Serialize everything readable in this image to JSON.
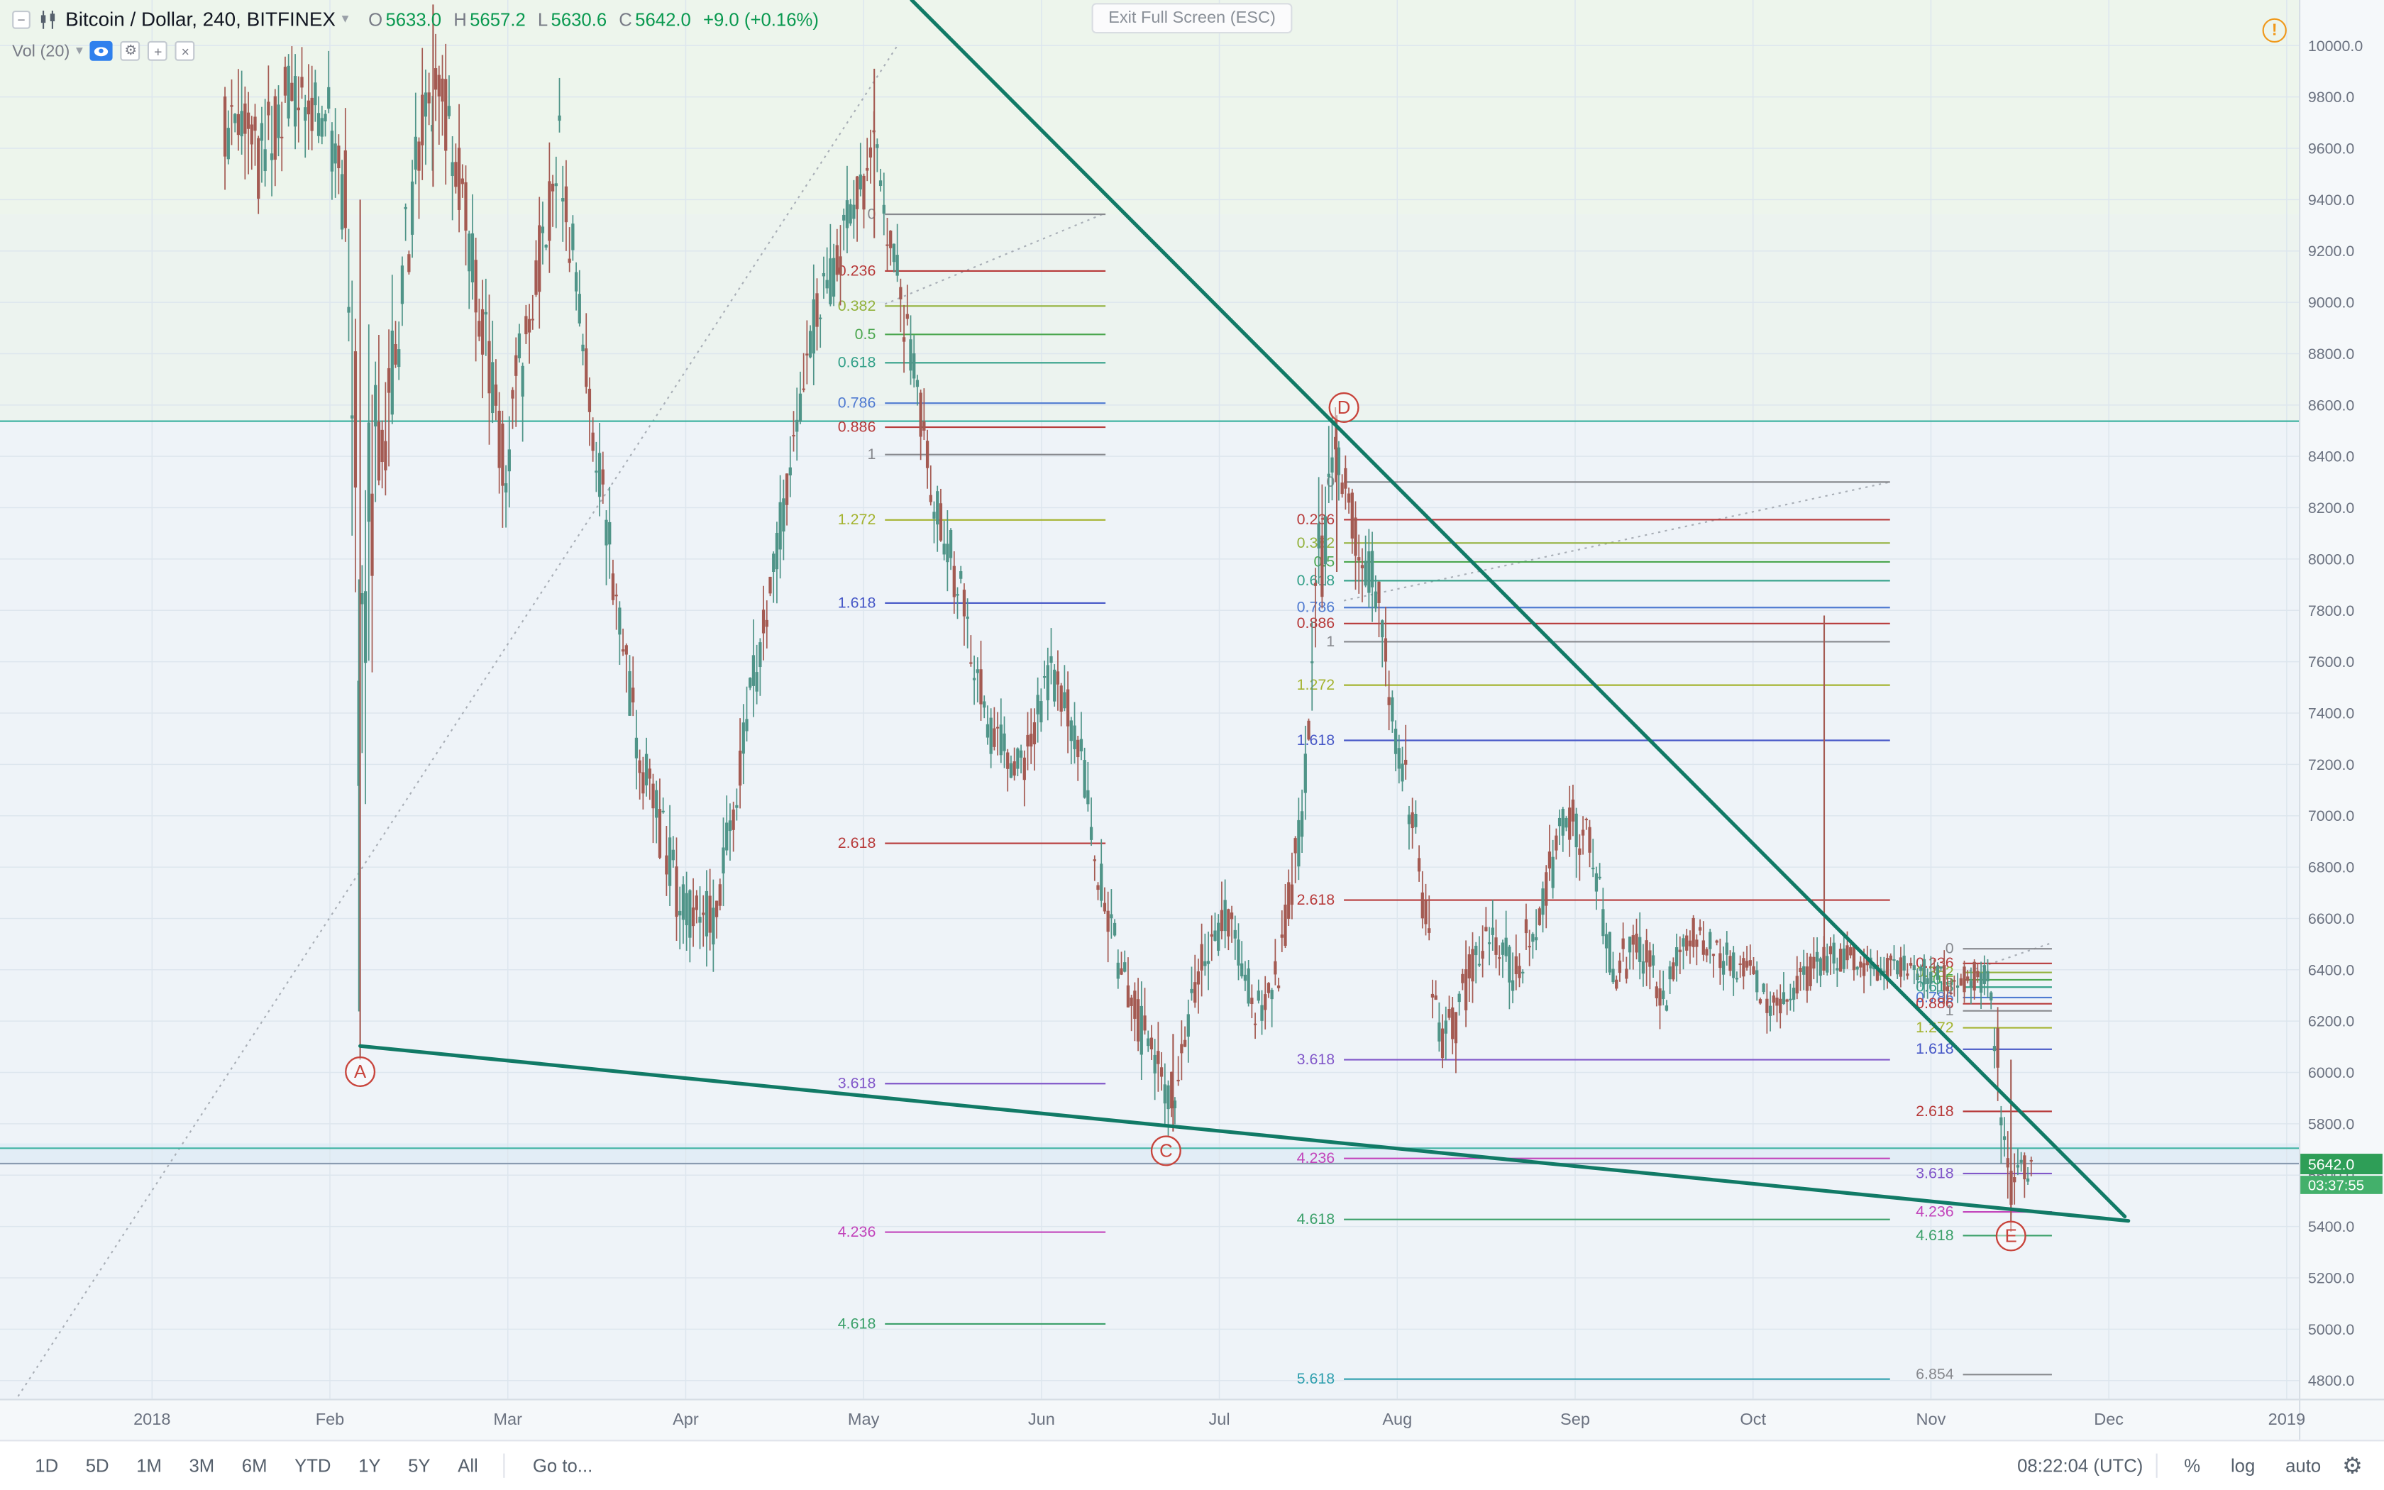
{
  "header": {
    "title": "Bitcoin / Dollar, 240, BITFINEX",
    "ohlc": {
      "o_label": "O",
      "o_value": "5633.0",
      "h_label": "H",
      "h_value": "5657.2",
      "l_label": "L",
      "l_value": "5630.6",
      "c_label": "C",
      "c_value": "5642.0",
      "change": "+9.0 (+0.16%)"
    },
    "indicator": {
      "name": "Vol (20)"
    }
  },
  "icons": {
    "minus": "−",
    "dropdown": "▾",
    "gear": "⚙",
    "plus": "+",
    "close": "×",
    "warning": "!",
    "gear_toolbar": "⚙"
  },
  "tooltip": {
    "text": "Exit Full Screen (ESC)"
  },
  "badges": {
    "last_price": "5642.0",
    "countdown": "03:37:55",
    "price_color": "#2e9e57",
    "countdown_color": "#43b06b"
  },
  "toolbar": {
    "ranges": [
      "1D",
      "5D",
      "1M",
      "3M",
      "6M",
      "YTD",
      "1Y",
      "5Y",
      "All"
    ],
    "goto": "Go to...",
    "clock": "08:22:04 (UTC)",
    "percent": "%",
    "log": "log",
    "auto": "auto"
  },
  "chart_data": {
    "type": "candlestick",
    "title": "Bitcoin / Dollar",
    "interval": "240",
    "exchange": "BITFINEX",
    "last_price": 5642.0,
    "y_axis": {
      "min": 4800,
      "max": 10000,
      "step": 200,
      "decimals": 1
    },
    "x_axis": {
      "ticks": [
        {
          "label": "2018",
          "t": 0
        },
        {
          "label": "Feb",
          "t": 1
        },
        {
          "label": "Mar",
          "t": 2
        },
        {
          "label": "Apr",
          "t": 3
        },
        {
          "label": "May",
          "t": 4
        },
        {
          "label": "Jun",
          "t": 5
        },
        {
          "label": "Jul",
          "t": 6
        },
        {
          "label": "Aug",
          "t": 7
        },
        {
          "label": "Sep",
          "t": 8
        },
        {
          "label": "Oct",
          "t": 9
        },
        {
          "label": "Nov",
          "t": 10
        },
        {
          "label": "Dec",
          "t": 11
        },
        {
          "label": "2019",
          "t": 12
        }
      ]
    },
    "price_path": [
      [
        0.41,
        9700,
        380
      ],
      [
        0.6,
        9550,
        420
      ],
      [
        0.75,
        9800,
        320
      ],
      [
        0.98,
        9760,
        320
      ],
      [
        1.1,
        9350,
        500
      ],
      [
        1.17,
        7600,
        2400
      ],
      [
        1.24,
        8300,
        800
      ],
      [
        1.38,
        8900,
        500
      ],
      [
        1.5,
        9650,
        400
      ],
      [
        1.62,
        9850,
        380
      ],
      [
        1.79,
        9250,
        380
      ],
      [
        1.97,
        8350,
        420
      ],
      [
        2.15,
        9050,
        380
      ],
      [
        2.29,
        9600,
        320
      ],
      [
        2.45,
        8700,
        320
      ],
      [
        2.6,
        7900,
        320
      ],
      [
        2.74,
        7250,
        280
      ],
      [
        2.97,
        6650,
        280
      ],
      [
        3.16,
        6600,
        250
      ],
      [
        3.35,
        7400,
        280
      ],
      [
        3.55,
        8200,
        280
      ],
      [
        3.72,
        8900,
        280
      ],
      [
        3.91,
        9300,
        270
      ],
      [
        4.06,
        9580,
        260
      ],
      [
        4.21,
        9000,
        280
      ],
      [
        4.38,
        8300,
        280
      ],
      [
        4.55,
        7850,
        250
      ],
      [
        4.72,
        7300,
        230
      ],
      [
        4.89,
        7200,
        220
      ],
      [
        5.06,
        7550,
        230
      ],
      [
        5.21,
        7300,
        220
      ],
      [
        5.34,
        6700,
        260
      ],
      [
        5.49,
        6300,
        240
      ],
      [
        5.62,
        6050,
        230
      ],
      [
        5.74,
        5900,
        220
      ],
      [
        5.9,
        6450,
        240
      ],
      [
        6.05,
        6600,
        220
      ],
      [
        6.2,
        6250,
        220
      ],
      [
        6.32,
        6350,
        220
      ],
      [
        6.45,
        6900,
        280
      ],
      [
        6.56,
        8000,
        550
      ],
      [
        6.67,
        8400,
        300
      ],
      [
        6.77,
        8100,
        280
      ],
      [
        6.88,
        7900,
        280
      ],
      [
        6.99,
        7300,
        280
      ],
      [
        7.11,
        6900,
        280
      ],
      [
        7.25,
        6050,
        280
      ],
      [
        7.37,
        6300,
        240
      ],
      [
        7.5,
        6550,
        220
      ],
      [
        7.65,
        6400,
        220
      ],
      [
        7.79,
        6600,
        220
      ],
      [
        7.95,
        7000,
        240
      ],
      [
        8.08,
        6900,
        240
      ],
      [
        8.21,
        6400,
        220
      ],
      [
        8.36,
        6500,
        200
      ],
      [
        8.5,
        6300,
        200
      ],
      [
        8.65,
        6550,
        200
      ],
      [
        8.8,
        6450,
        170
      ],
      [
        8.96,
        6420,
        160
      ],
      [
        9.1,
        6250,
        160
      ],
      [
        9.25,
        6350,
        160
      ],
      [
        9.4,
        6450,
        170
      ],
      [
        9.56,
        6450,
        140
      ],
      [
        9.7,
        6400,
        140
      ],
      [
        9.85,
        6420,
        130
      ],
      [
        10.0,
        6380,
        130
      ],
      [
        10.15,
        6350,
        130
      ],
      [
        10.26,
        6380,
        140
      ],
      [
        10.32,
        6350,
        140
      ],
      [
        10.38,
        6000,
        400
      ],
      [
        10.44,
        5560,
        300
      ],
      [
        10.51,
        5650,
        170
      ],
      [
        10.58,
        5600,
        140
      ]
    ],
    "spikes": [
      {
        "t": 1.17,
        "from": 6050,
        "to": 9400
      },
      {
        "t": 1.58,
        "from": 9450,
        "to": 10160
      },
      {
        "t": 4.06,
        "from": 9250,
        "to": 9910
      },
      {
        "t": 5.74,
        "from": 5770,
        "to": 6150
      },
      {
        "t": 6.66,
        "from": 7950,
        "to": 8560
      },
      {
        "t": 9.4,
        "from": 6450,
        "to": 7780
      },
      {
        "t": 10.45,
        "from": 5380,
        "to": 6050
      }
    ],
    "candle_colors": {
      "up": "#4f9488",
      "down": "#a45a52"
    },
    "fib_level_colors": {
      "0": "#87898e",
      "0.236": "#b73a3a",
      "0.382": "#93b23d",
      "0.5": "#4aa64e",
      "0.618": "#33a089",
      "0.786": "#4f7ad1",
      "0.886": "#b73a3a",
      "1": "#87898e",
      "1.272": "#a4b32f",
      "1.618": "#4758c7",
      "2.618": "#b73a3a",
      "3.618": "#8157c9",
      "4.236": "#c244bb",
      "4.618": "#3ba06a",
      "5.618": "#2f9fae",
      "6.854": "#87898e"
    },
    "fib_sets": [
      {
        "name": "fib-retracement-feb-may",
        "t1": 4.12,
        "t2": 5.36,
        "price0": 9343,
        "price1": 8407,
        "levels": [
          "0",
          "0.236",
          "0.382",
          "0.5",
          "0.618",
          "0.786",
          "0.886",
          "1",
          "1.272",
          "1.618",
          "2.618",
          "3.618",
          "4.236",
          "4.618"
        ]
      },
      {
        "name": "fib-retracement-jun-aug",
        "t1": 6.7,
        "t2": 9.77,
        "price0": 8300,
        "price1": 7678,
        "levels": [
          "0",
          "0.236",
          "0.382",
          "0.5",
          "0.618",
          "0.786",
          "0.886",
          "1",
          "1.272",
          "1.618",
          "2.618",
          "3.618",
          "4.236",
          "4.618",
          "5.618"
        ]
      },
      {
        "name": "fib-retracement-nov",
        "t1": 10.18,
        "t2": 10.68,
        "price0": 6482,
        "price1": 6240,
        "levels": [
          "0",
          "0.236",
          "0.382",
          "0.5",
          "0.618",
          "0.786",
          "0.886",
          "1",
          "1.272",
          "1.618",
          "2.618",
          "3.618",
          "4.236",
          "4.618",
          "6.854"
        ]
      }
    ],
    "trendlines": [
      {
        "name": "upper",
        "t1": 4.27,
        "p1": 10178,
        "t2": 11.09,
        "p2": 5439,
        "color": "#117a66"
      },
      {
        "name": "lower",
        "t1": 1.17,
        "p1": 6103,
        "t2": 11.11,
        "p2": 5422,
        "color": "#117a66"
      }
    ],
    "dashed_lines": [
      {
        "t1": -0.9,
        "p1": 4582,
        "t2": 4.19,
        "p2": 10000
      },
      {
        "t1": 4.12,
        "p1": 8993,
        "t2": 5.36,
        "p2": 9348
      },
      {
        "t1": 6.7,
        "p1": 7838,
        "t2": 9.77,
        "p2": 8300
      },
      {
        "t1": 10.18,
        "p1": 6387,
        "t2": 10.68,
        "p2": 6505
      }
    ],
    "h_lines": [
      {
        "price": 8537,
        "color": "#41b3a3"
      },
      {
        "price": 5705,
        "color": "#41b3a3"
      },
      {
        "price": 5645,
        "color": "#8a9bb0"
      }
    ],
    "wave_labels": [
      {
        "label": "A",
        "t": 1.17,
        "price": 6003
      },
      {
        "label": "C",
        "t": 5.7,
        "price": 5695
      },
      {
        "label": "D",
        "t": 6.7,
        "price": 8590
      },
      {
        "label": "E",
        "t": 10.45,
        "price": 5363
      }
    ]
  }
}
